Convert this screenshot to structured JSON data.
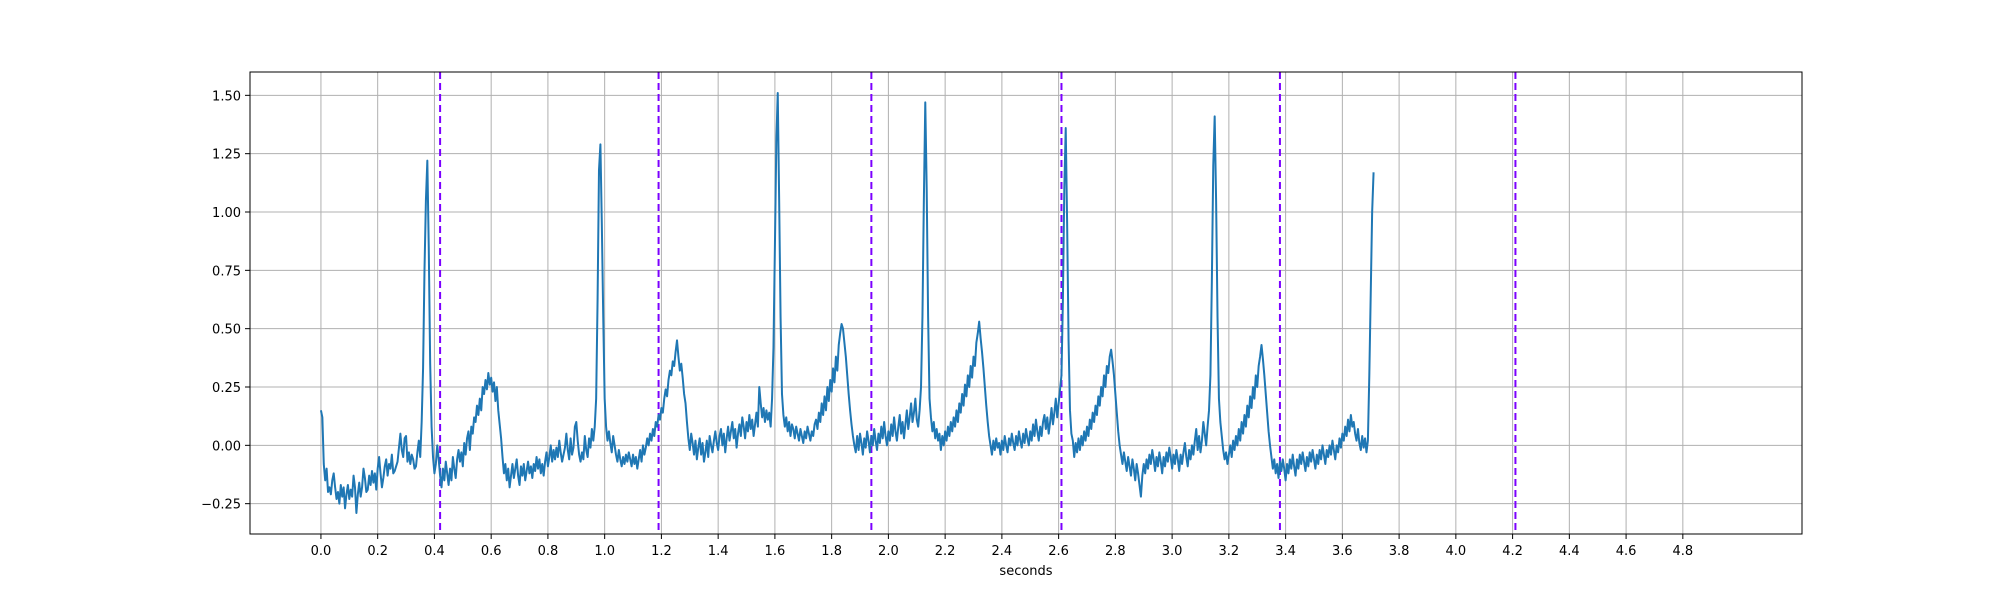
{
  "chart_data": {
    "type": "line",
    "title": "",
    "xlabel": "seconds",
    "ylabel": "",
    "xlim": [
      -0.25,
      5.22
    ],
    "ylim": [
      -0.38,
      1.6
    ],
    "xticks": [
      "0.0",
      "0.2",
      "0.4",
      "0.6",
      "0.8",
      "1.0",
      "1.2",
      "1.4",
      "1.6",
      "1.8",
      "2.0",
      "2.2",
      "2.4",
      "2.6",
      "2.8",
      "3.0",
      "3.2",
      "3.4",
      "3.6",
      "3.8",
      "4.0",
      "4.2",
      "4.4",
      "4.6",
      "4.8"
    ],
    "yticks": [
      "1.50",
      "1.25",
      "1.00",
      "0.75",
      "0.50",
      "0.25",
      "0.00",
      "−0.25"
    ],
    "grid": true,
    "colors": {
      "signal": "#1f77b4",
      "marker": "#7b00ff",
      "grid": "#b0b0b0"
    },
    "series": [
      {
        "style": "solid",
        "sample_interval_s": 0.005,
        "start_s": 0.0,
        "values": [
          0.15,
          0.12,
          -0.08,
          -0.15,
          -0.1,
          -0.2,
          -0.18,
          -0.21,
          -0.15,
          -0.12,
          -0.18,
          -0.23,
          -0.2,
          -0.25,
          -0.17,
          -0.22,
          -0.18,
          -0.27,
          -0.21,
          -0.17,
          -0.23,
          -0.19,
          -0.22,
          -0.13,
          -0.18,
          -0.29,
          -0.21,
          -0.16,
          -0.22,
          -0.18,
          -0.1,
          -0.14,
          -0.2,
          -0.19,
          -0.13,
          -0.17,
          -0.11,
          -0.16,
          -0.12,
          -0.19,
          -0.1,
          -0.05,
          -0.12,
          -0.18,
          -0.14,
          -0.09,
          -0.06,
          -0.13,
          -0.08,
          -0.1,
          -0.04,
          -0.12,
          -0.11,
          -0.09,
          -0.07,
          -0.01,
          0.05,
          -0.02,
          -0.05,
          0.03,
          0.04,
          -0.07,
          -0.03,
          -0.08,
          -0.04,
          -0.06,
          -0.1,
          -0.09,
          -0.03,
          0.02,
          -0.05,
          0.1,
          0.33,
          0.75,
          1.05,
          1.22,
          0.85,
          0.35,
          0.08,
          -0.05,
          -0.12,
          -0.08,
          0.0,
          -0.06,
          -0.13,
          -0.18,
          -0.1,
          -0.15,
          -0.07,
          -0.12,
          -0.17,
          -0.1,
          -0.15,
          -0.05,
          -0.1,
          -0.14,
          -0.06,
          -0.02,
          -0.07,
          -0.03,
          -0.09,
          0.01,
          -0.04,
          0.03,
          0.06,
          -0.02,
          0.08,
          0.05,
          0.12,
          0.1,
          0.17,
          0.13,
          0.2,
          0.15,
          0.25,
          0.22,
          0.28,
          0.24,
          0.31,
          0.26,
          0.29,
          0.23,
          0.27,
          0.19,
          0.25,
          0.15,
          0.09,
          0.03,
          -0.05,
          -0.12,
          -0.08,
          -0.15,
          -0.1,
          -0.18,
          -0.13,
          -0.08,
          -0.14,
          -0.1,
          -0.06,
          -0.13,
          -0.17,
          -0.09,
          -0.13,
          -0.08,
          -0.15,
          -0.11,
          -0.07,
          -0.12,
          -0.09,
          -0.14,
          -0.08,
          -0.11,
          -0.05,
          -0.1,
          -0.06,
          -0.12,
          -0.08,
          -0.13,
          -0.07,
          -0.03,
          -0.09,
          -0.05,
          0.0,
          -0.07,
          -0.02,
          -0.06,
          -0.01,
          -0.05,
          0.02,
          -0.03,
          -0.07,
          -0.04,
          -0.01,
          0.05,
          -0.02,
          -0.06,
          0.03,
          -0.04,
          -0.01,
          0.08,
          0.1,
          0.02,
          -0.04,
          -0.07,
          -0.03,
          -0.06,
          0.04,
          -0.02,
          -0.05,
          0.03,
          -0.01,
          0.07,
          0.02,
          0.08,
          0.2,
          0.62,
          1.18,
          1.29,
          0.95,
          0.55,
          0.2,
          0.08,
          0.02,
          0.06,
          0.01,
          -0.03,
          0.04,
          0.0,
          -0.04,
          -0.07,
          -0.02,
          -0.06,
          -0.09,
          -0.05,
          -0.08,
          -0.04,
          -0.07,
          -0.03,
          -0.06,
          -0.09,
          -0.04,
          -0.08,
          -0.05,
          -0.1,
          -0.06,
          -0.02,
          -0.07,
          0.0,
          -0.04,
          -0.01,
          0.03,
          0.0,
          0.05,
          0.02,
          0.07,
          0.04,
          0.1,
          0.08,
          0.13,
          0.11,
          0.16,
          0.14,
          0.2,
          0.24,
          0.21,
          0.28,
          0.32,
          0.3,
          0.36,
          0.34,
          0.4,
          0.45,
          0.38,
          0.32,
          0.35,
          0.29,
          0.22,
          0.18,
          0.1,
          0.03,
          -0.02,
          0.05,
          0.01,
          -0.04,
          0.02,
          -0.06,
          -0.01,
          0.03,
          -0.04,
          0.01,
          -0.07,
          -0.03,
          0.02,
          -0.05,
          0.04,
          0.0,
          -0.03,
          0.02,
          0.06,
          0.01,
          -0.02,
          0.04,
          0.07,
          0.0,
          0.05,
          -0.03,
          0.03,
          0.08,
          0.02,
          0.06,
          0.1,
          0.03,
          0.07,
          -0.01,
          0.05,
          0.09,
          0.04,
          0.12,
          0.08,
          0.03,
          0.1,
          0.06,
          0.13,
          0.07,
          0.11,
          0.04,
          0.09,
          0.14,
          0.08,
          0.25,
          0.18,
          0.12,
          0.16,
          0.1,
          0.15,
          0.11,
          0.14,
          0.08,
          0.2,
          0.42,
          0.85,
          1.3,
          1.51,
          1.05,
          0.55,
          0.22,
          0.13,
          0.08,
          0.12,
          0.06,
          0.1,
          0.04,
          0.09,
          0.07,
          0.03,
          0.08,
          0.05,
          0.02,
          0.07,
          0.04,
          0.01,
          0.06,
          0.03,
          0.08,
          0.05,
          0.02,
          0.06,
          0.04,
          0.09,
          0.11,
          0.07,
          0.14,
          0.1,
          0.18,
          0.13,
          0.21,
          0.15,
          0.25,
          0.19,
          0.28,
          0.23,
          0.33,
          0.27,
          0.38,
          0.32,
          0.43,
          0.48,
          0.52,
          0.5,
          0.44,
          0.38,
          0.3,
          0.22,
          0.15,
          0.09,
          0.04,
          0.0,
          -0.03,
          0.04,
          -0.02,
          0.05,
          0.01,
          -0.04,
          0.03,
          -0.01,
          0.06,
          0.02,
          -0.03,
          0.04,
          0.0,
          0.07,
          0.02,
          -0.02,
          0.05,
          0.01,
          0.08,
          0.03,
          0.1,
          0.04,
          0.0,
          0.06,
          0.02,
          0.09,
          0.04,
          0.12,
          0.06,
          0.02,
          0.08,
          0.13,
          0.05,
          0.1,
          0.03,
          0.09,
          0.15,
          0.07,
          0.12,
          0.18,
          0.1,
          0.14,
          0.2,
          0.11,
          0.08,
          0.15,
          0.25,
          0.55,
          1.05,
          1.47,
          1.1,
          0.55,
          0.2,
          0.12,
          0.06,
          0.1,
          0.03,
          0.07,
          0.02,
          0.05,
          -0.02,
          0.04,
          0.0,
          0.06,
          0.02,
          0.08,
          0.04,
          0.1,
          0.06,
          0.12,
          0.08,
          0.15,
          0.1,
          0.18,
          0.14,
          0.22,
          0.17,
          0.26,
          0.21,
          0.3,
          0.25,
          0.34,
          0.29,
          0.38,
          0.34,
          0.44,
          0.48,
          0.53,
          0.46,
          0.4,
          0.33,
          0.25,
          0.17,
          0.1,
          0.04,
          0.0,
          -0.04,
          0.02,
          -0.02,
          0.03,
          -0.01,
          0.01,
          -0.04,
          0.02,
          -0.02,
          0.04,
          0.0,
          -0.03,
          0.03,
          0.0,
          0.05,
          0.01,
          -0.02,
          0.04,
          0.0,
          0.06,
          0.02,
          -0.01,
          0.05,
          0.01,
          0.07,
          0.03,
          0.0,
          0.06,
          0.02,
          0.09,
          0.04,
          0.11,
          0.06,
          0.02,
          0.08,
          0.04,
          0.1,
          0.13,
          0.07,
          0.12,
          0.05,
          0.1,
          0.16,
          0.09,
          0.14,
          0.2,
          0.12,
          0.18,
          0.24,
          0.3,
          0.62,
          1.1,
          1.36,
          0.95,
          0.45,
          0.15,
          0.05,
          0.02,
          -0.05,
          0.01,
          -0.03,
          0.03,
          -0.02,
          0.04,
          0.0,
          0.06,
          0.02,
          0.08,
          0.04,
          0.11,
          0.07,
          0.14,
          0.1,
          0.17,
          0.13,
          0.21,
          0.17,
          0.25,
          0.21,
          0.3,
          0.25,
          0.34,
          0.31,
          0.38,
          0.41,
          0.36,
          0.3,
          0.22,
          0.14,
          0.06,
          0.0,
          -0.04,
          -0.08,
          -0.03,
          -0.07,
          -0.11,
          -0.05,
          -0.09,
          -0.13,
          -0.06,
          -0.1,
          -0.15,
          -0.08,
          -0.12,
          -0.17,
          -0.22,
          -0.13,
          -0.08,
          -0.12,
          -0.06,
          -0.1,
          -0.04,
          -0.08,
          -0.02,
          -0.06,
          -0.11,
          -0.05,
          -0.09,
          -0.03,
          -0.07,
          -0.12,
          -0.05,
          -0.09,
          -0.03,
          -0.07,
          -0.01,
          -0.05,
          -0.1,
          -0.04,
          -0.08,
          -0.02,
          -0.06,
          -0.11,
          -0.04,
          -0.08,
          -0.03,
          0.01,
          -0.05,
          -0.09,
          -0.02,
          -0.06,
          0.0,
          -0.04,
          0.02,
          0.07,
          -0.02,
          0.04,
          -0.03,
          0.02,
          0.1,
          0.05,
          0.0,
          0.08,
          0.15,
          0.3,
          0.7,
          1.2,
          1.41,
          1.05,
          0.55,
          0.2,
          0.1,
          0.04,
          -0.02,
          -0.06,
          -0.03,
          -0.08,
          -0.04,
          0.0,
          -0.05,
          0.02,
          -0.02,
          0.04,
          0.0,
          0.07,
          0.02,
          0.1,
          0.05,
          0.13,
          0.08,
          0.17,
          0.12,
          0.21,
          0.16,
          0.25,
          0.2,
          0.3,
          0.25,
          0.34,
          0.38,
          0.43,
          0.37,
          0.3,
          0.22,
          0.14,
          0.06,
          0.0,
          -0.05,
          -0.1,
          -0.06,
          -0.12,
          -0.08,
          -0.14,
          -0.07,
          -0.11,
          -0.06,
          -0.1,
          -0.15,
          -0.08,
          -0.12,
          -0.06,
          -0.1,
          -0.04,
          -0.09,
          -0.13,
          -0.06,
          -0.1,
          -0.04,
          -0.08,
          -0.03,
          -0.07,
          -0.11,
          -0.05,
          -0.09,
          -0.03,
          -0.07,
          -0.02,
          -0.06,
          -0.1,
          -0.04,
          -0.08,
          -0.02,
          -0.06,
          0.0,
          -0.04,
          -0.08,
          -0.02,
          -0.05,
          0.0,
          -0.04,
          0.02,
          -0.02,
          -0.06,
          0.0,
          -0.03,
          0.03,
          -0.01,
          0.05,
          0.02,
          0.08,
          0.04,
          0.11,
          0.06,
          0.13,
          0.08,
          0.1,
          0.05,
          0.02,
          0.07,
          0.01,
          -0.02,
          0.04,
          -0.01,
          0.03,
          -0.03,
          0.02,
          0.3,
          0.65,
          1.0,
          1.17
        ]
      },
      {
        "style": "dashed",
        "vertical_x": [
          0.42,
          1.19,
          1.94,
          2.61,
          3.38,
          4.21
        ]
      }
    ]
  }
}
